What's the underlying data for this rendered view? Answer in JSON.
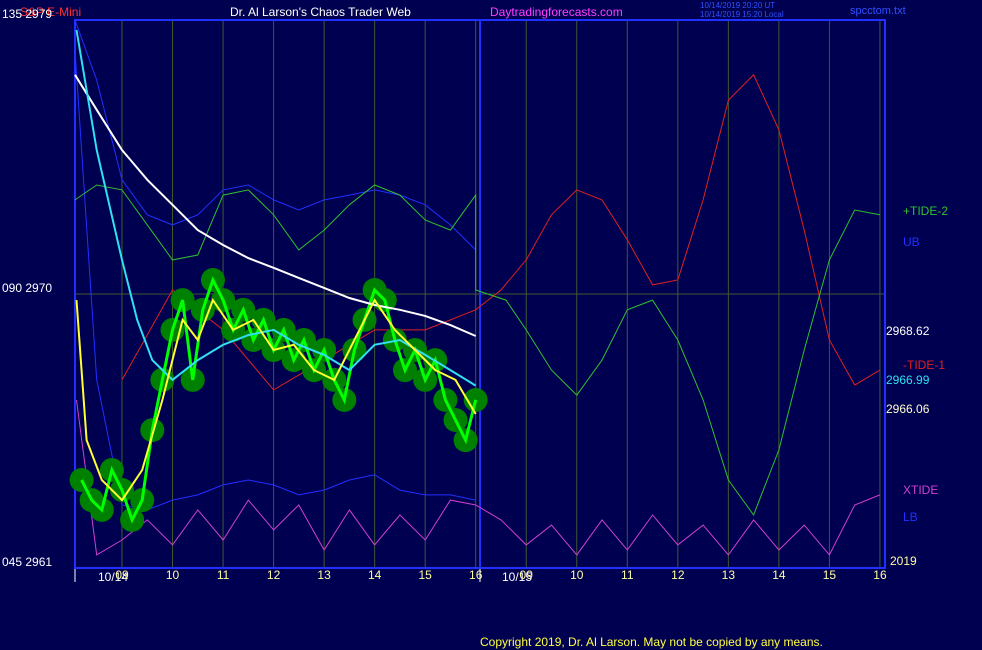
{
  "chart_data": {
    "type": "line",
    "title": "Dr. Al Larson's Chaos Trader Web",
    "symbol": "S&P E-Mini",
    "website": "Daytradingforecasts.com",
    "timestamps": [
      "10/14/2019 20:20 UT",
      "10/14/2019 15:20 Local"
    ],
    "file": "spcctom.txt",
    "copyright": "Copyright 2019, Dr. Al Larson. May not be copied by any means.",
    "year": "2019",
    "date_labels": [
      "10/14",
      "10/15"
    ],
    "xlim": [
      8.07,
      24.1
    ],
    "xticks": [
      {
        "value": 9,
        "label": "09"
      },
      10,
      11,
      12,
      13,
      14,
      15,
      16,
      {
        "value": 17,
        "label": "09"
      },
      {
        "value": 18,
        "label": "10"
      },
      {
        "value": 19,
        "label": "11"
      },
      {
        "value": 20,
        "label": "12"
      },
      {
        "value": 21,
        "label": "13"
      },
      {
        "value": 22,
        "label": "14"
      },
      {
        "value": 23,
        "label": "15"
      },
      {
        "value": 24,
        "label": "16"
      }
    ],
    "ylim": [
      2961,
      2979
    ],
    "yticks": [
      {
        "value": 2979,
        "label": "135  2979"
      },
      {
        "value": 2970,
        "label": "090  2970"
      },
      {
        "value": 2961,
        "label": "045  2961"
      }
    ],
    "grid": true,
    "series": [
      {
        "name": "XTIDE",
        "color": "#d040d0",
        "x": [
          8.1,
          8.5,
          9,
          9.5,
          10,
          10.5,
          11,
          11.5,
          12,
          12.5,
          13,
          13.5,
          14,
          14.5,
          15,
          15.5,
          16,
          16.5,
          17,
          17.5,
          18,
          18.5,
          19,
          19.5,
          20,
          20.5,
          21,
          21.5,
          22,
          22.5,
          23,
          23.5,
          24
        ],
        "values": [
          2966.52,
          2961.43,
          2961.92,
          2962.58,
          2961.76,
          2962.91,
          2961.92,
          2963.23,
          2962.25,
          2963.07,
          2961.59,
          2962.91,
          2961.76,
          2962.74,
          2961.92,
          2963.23,
          2963.07,
          2962.58,
          2961.76,
          2962.41,
          2961.43,
          2962.58,
          2961.59,
          2962.74,
          2961.76,
          2962.41,
          2961.43,
          2962.58,
          2961.59,
          2962.41,
          2961.43,
          2963.07,
          2963.4
        ]
      },
      {
        "name": "UB",
        "color": "#2030ff",
        "x": [
          8.07,
          8.5,
          9,
          9.5,
          10,
          10.5,
          11,
          11.5,
          12,
          12.5,
          13,
          13.5,
          14,
          14.5,
          15,
          15.5,
          16
        ],
        "values": [
          2979.0,
          2977.03,
          2973.75,
          2972.6,
          2972.27,
          2972.6,
          2973.42,
          2973.58,
          2973.09,
          2972.76,
          2973.09,
          2973.25,
          2973.42,
          2973.25,
          2972.93,
          2972.27,
          2971.45
        ]
      },
      {
        "name": "LB",
        "color": "#2030ff",
        "x": [
          8.07,
          8.5,
          9,
          9.5,
          10,
          10.5,
          11,
          11.5,
          12,
          12.5,
          13,
          13.5,
          14,
          14.5,
          15,
          15.5,
          16
        ],
        "values": [
          2978.02,
          2967.18,
          2963.07,
          2962.91,
          2963.23,
          2963.4,
          2963.73,
          2963.89,
          2963.73,
          2963.4,
          2963.56,
          2963.89,
          2964.06,
          2963.56,
          2963.4,
          2963.4,
          2963.23
        ]
      },
      {
        "name": "-TIDE-1",
        "color": "#e02020",
        "x": [
          9,
          10,
          11,
          12,
          13,
          14,
          15,
          16,
          16.5,
          17,
          17.5,
          18,
          18.5,
          19,
          19.5,
          20,
          20.5,
          21,
          21.5,
          22,
          22.5,
          23,
          23.5,
          24
        ],
        "values": [
          2967.18,
          2970.13,
          2968.82,
          2966.85,
          2967.83,
          2968.82,
          2968.82,
          2969.48,
          2970.13,
          2971.12,
          2972.6,
          2973.42,
          2973.09,
          2971.78,
          2970.3,
          2970.46,
          2973.09,
          2976.37,
          2977.2,
          2975.39,
          2972.1,
          2968.49,
          2967.01,
          2967.5
        ]
      },
      {
        "name": "+TIDE-2",
        "color": "#30c030",
        "x": [
          8.07,
          8.5,
          9,
          9.5,
          10,
          10.5,
          11,
          11.5,
          12,
          12.5,
          13,
          13.5,
          14,
          14.5,
          15,
          15.5,
          16,
          16,
          16.6,
          17,
          17.5,
          18,
          18.5,
          19,
          19.5,
          20,
          20.5,
          21,
          21.5,
          22,
          22.5,
          23,
          23.5,
          24
        ],
        "values": [
          2973.09,
          2973.58,
          2973.42,
          2972.27,
          2971.12,
          2971.28,
          2973.25,
          2973.42,
          2972.6,
          2971.45,
          2972.1,
          2972.93,
          2973.58,
          2973.25,
          2972.43,
          2972.1,
          2973.25,
          2970.13,
          2969.8,
          2968.82,
          2967.5,
          2966.68,
          2967.83,
          2969.48,
          2969.8,
          2968.49,
          2966.52,
          2963.89,
          2962.74,
          2964.88,
          2968.16,
          2971.12,
          2972.76,
          2972.6
        ]
      },
      {
        "color": "#00ff00",
        "x": [
          8.2,
          8.4,
          8.6,
          8.8,
          9.0,
          9.2,
          9.4,
          9.6,
          9.8,
          10.0,
          10.2,
          10.4,
          10.6,
          10.8,
          11.0,
          11.2,
          11.4,
          11.6,
          11.8,
          12.0,
          12.2,
          12.4,
          12.6,
          12.8,
          13.0,
          13.2,
          13.4,
          13.6,
          13.8,
          14.0,
          14.2,
          14.4,
          14.6,
          14.8,
          15.0,
          15.2,
          15.4,
          15.6,
          15.8,
          16.0
        ],
        "values": [
          2963.89,
          2963.23,
          2962.91,
          2964.22,
          2963.56,
          2962.58,
          2963.23,
          2965.53,
          2967.18,
          2968.82,
          2969.8,
          2967.18,
          2969.48,
          2970.46,
          2969.8,
          2968.82,
          2969.48,
          2968.49,
          2969.15,
          2968.16,
          2968.82,
          2967.83,
          2968.49,
          2967.5,
          2968.16,
          2967.18,
          2966.52,
          2968.16,
          2969.15,
          2970.13,
          2969.8,
          2968.49,
          2967.5,
          2968.16,
          2967.18,
          2967.83,
          2966.52,
          2965.86,
          2965.2,
          2966.52
        ]
      },
      {
        "color": "#ffffff",
        "x": [
          8.07,
          8.5,
          9,
          9.5,
          10,
          10.5,
          11,
          11.5,
          12,
          12.5,
          13,
          13.5,
          14,
          14.5,
          15,
          15.5,
          16
        ],
        "values": [
          2977.2,
          2976.05,
          2974.73,
          2973.75,
          2972.93,
          2972.1,
          2971.61,
          2971.18,
          2970.86,
          2970.53,
          2970.2,
          2969.87,
          2969.64,
          2969.48,
          2969.28,
          2968.98,
          2968.62
        ]
      },
      {
        "color": "#30e0f0",
        "x": [
          8.1,
          8.5,
          9,
          9.3,
          9.6,
          10,
          10.5,
          11,
          11.5,
          12,
          12.5,
          13,
          13.5,
          14,
          14.5,
          15,
          15.5,
          16
        ],
        "values": [
          2978.67,
          2974.73,
          2971.12,
          2969.15,
          2967.83,
          2967.18,
          2967.83,
          2968.33,
          2968.65,
          2968.82,
          2968.33,
          2968.0,
          2967.5,
          2968.33,
          2968.49,
          2968.0,
          2967.5,
          2966.99
        ]
      },
      {
        "color": "#ffff30",
        "x": [
          8.1,
          8.3,
          8.6,
          9,
          9.4,
          9.8,
          10.2,
          10.5,
          10.8,
          11.2,
          11.6,
          12,
          12.4,
          12.8,
          13.2,
          13.6,
          14,
          14.4,
          14.8,
          15.2,
          15.6,
          16
        ],
        "values": [
          2969.8,
          2965.2,
          2963.89,
          2963.23,
          2964.22,
          2966.52,
          2969.15,
          2968.49,
          2969.8,
          2968.82,
          2969.15,
          2968.16,
          2968.33,
          2967.5,
          2967.18,
          2968.49,
          2969.8,
          2968.82,
          2968.16,
          2967.5,
          2967.18,
          2966.06
        ]
      }
    ]
  }
}
